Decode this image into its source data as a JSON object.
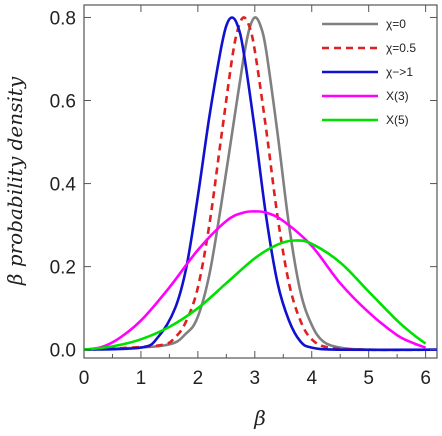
{
  "chart_data": {
    "type": "line",
    "xlabel": "β",
    "ylabel": "β probability density",
    "xlim": [
      0,
      6.2
    ],
    "ylim": [
      -0.02,
      0.83
    ],
    "xticks": [
      0,
      1,
      2,
      3,
      4,
      5,
      6
    ],
    "yticks": [
      "0.0",
      "0.2",
      "0.4",
      "0.6",
      "0.8"
    ],
    "ytick_values": [
      0.0,
      0.2,
      0.4,
      0.6,
      0.8
    ],
    "grid": false,
    "legend_position": "top-right",
    "series": [
      {
        "name": "χ=0",
        "color": "#808080",
        "style": "solid",
        "x": [
          0,
          1.4,
          1.8,
          2.0,
          2.2,
          2.4,
          2.6,
          2.8,
          2.9,
          3.0,
          3.1,
          3.2,
          3.4,
          3.6,
          3.8,
          4.0,
          4.2,
          4.5,
          5.0,
          6.2
        ],
        "y": [
          0,
          0.01,
          0.04,
          0.08,
          0.18,
          0.34,
          0.52,
          0.7,
          0.77,
          0.8,
          0.78,
          0.72,
          0.52,
          0.3,
          0.14,
          0.06,
          0.02,
          0.005,
          0,
          0
        ]
      },
      {
        "name": "χ=0.5",
        "color": "#e02020",
        "style": "dashed",
        "x": [
          0,
          1.3,
          1.6,
          1.8,
          2.0,
          2.2,
          2.4,
          2.6,
          2.7,
          2.8,
          2.9,
          3.0,
          3.2,
          3.4,
          3.6,
          3.8,
          4.0,
          4.3,
          5.0,
          6.2
        ],
        "y": [
          0,
          0.01,
          0.03,
          0.07,
          0.15,
          0.3,
          0.5,
          0.7,
          0.77,
          0.8,
          0.78,
          0.72,
          0.53,
          0.32,
          0.16,
          0.07,
          0.025,
          0.005,
          0,
          0
        ]
      },
      {
        "name": "χ−>1",
        "color": "#1010d0",
        "style": "solid",
        "x": [
          0,
          1.0,
          1.3,
          1.6,
          1.8,
          2.0,
          2.2,
          2.4,
          2.5,
          2.6,
          2.7,
          2.8,
          3.0,
          3.2,
          3.4,
          3.6,
          3.8,
          4.0,
          4.5,
          6.2
        ],
        "y": [
          0,
          0.005,
          0.03,
          0.1,
          0.2,
          0.37,
          0.56,
          0.72,
          0.78,
          0.8,
          0.78,
          0.72,
          0.53,
          0.32,
          0.16,
          0.07,
          0.02,
          0.005,
          0,
          0
        ]
      },
      {
        "name": "X(3)",
        "color": "#ff00ff",
        "style": "solid",
        "x": [
          0,
          0.3,
          0.6,
          1.0,
          1.5,
          2.0,
          2.5,
          2.8,
          3.0,
          3.2,
          3.5,
          4.0,
          4.5,
          5.0,
          5.5,
          5.8,
          6.0
        ],
        "y": [
          0,
          0.006,
          0.026,
          0.07,
          0.15,
          0.24,
          0.31,
          0.33,
          0.333,
          0.33,
          0.31,
          0.25,
          0.16,
          0.09,
          0.035,
          0.015,
          0.005
        ]
      },
      {
        "name": "X(5)",
        "color": "#00e000",
        "style": "solid",
        "x": [
          0,
          0.5,
          1.0,
          1.5,
          2.0,
          2.5,
          3.0,
          3.4,
          3.7,
          4.0,
          4.5,
          5.0,
          5.5,
          5.8,
          6.0
        ],
        "y": [
          0,
          0.008,
          0.025,
          0.055,
          0.1,
          0.16,
          0.22,
          0.253,
          0.263,
          0.255,
          0.21,
          0.14,
          0.07,
          0.035,
          0.015
        ]
      }
    ]
  }
}
